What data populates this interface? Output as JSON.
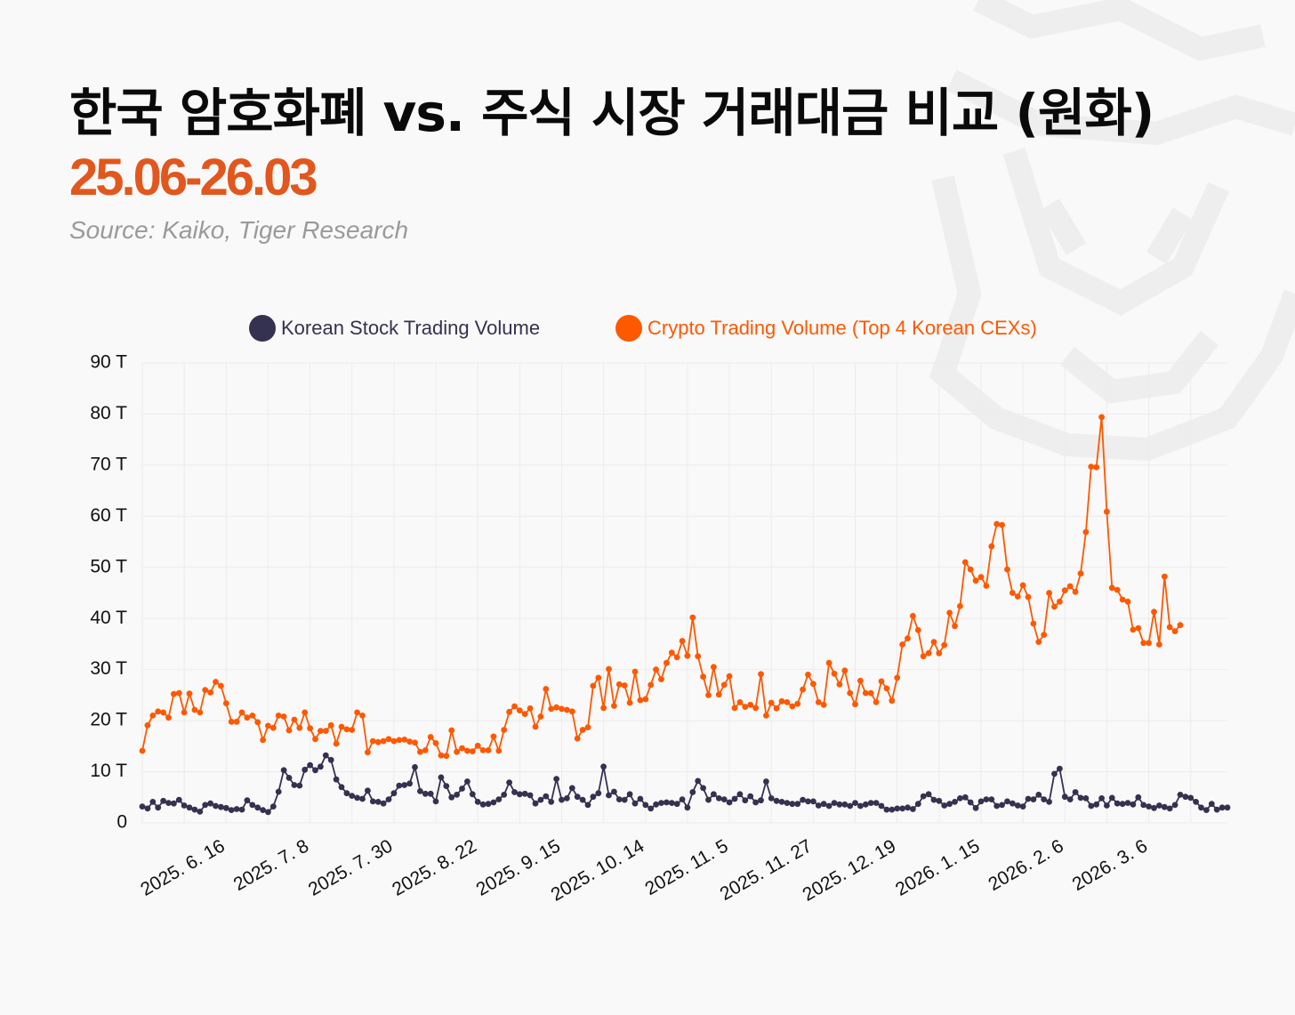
{
  "header": {
    "title": "한국 암호화폐 vs. 주식 시장 거래대금 비교 (원화)",
    "subtitle": "25.06-26.03",
    "source": "Source: Kaiko, Tiger Research"
  },
  "colors": {
    "stock": "#353150",
    "crypto": "#fe5800",
    "grid": "#ececec",
    "background": "#f9f9f9",
    "accent": "#e2571d"
  },
  "chart_data": {
    "type": "line",
    "title": "한국 암호화폐 vs. 주식 시장 거래대금 비교 (원화)",
    "subtitle": "25.06-26.03",
    "xlabel": "",
    "ylabel": "",
    "ylim": [
      0,
      90
    ],
    "y_ticks": [
      0,
      10,
      20,
      30,
      40,
      50,
      60,
      70,
      80,
      90
    ],
    "y_tick_labels": [
      "0",
      "10 T",
      "20 T",
      "30 T",
      "40 T",
      "50 T",
      "60 T",
      "70 T",
      "80 T",
      "90 T"
    ],
    "x_tick_labels": [
      "2025. 6. 16",
      "2025. 7. 8",
      "2025. 7. 30",
      "2025. 8. 22",
      "2025. 9. 15",
      "2025. 10. 14",
      "2025. 11. 5",
      "2025. 11. 27",
      "2025. 12. 19",
      "2026. 1. 15",
      "2026. 2. 6",
      "2026. 3. 6"
    ],
    "x_tick_index": [
      16,
      32,
      48,
      64,
      80,
      96,
      112,
      128,
      144,
      160,
      176,
      192
    ],
    "legend_position": "top-center",
    "grid": true,
    "series": [
      {
        "name": "Korean Stock Trading Volume",
        "values": [
          3.2,
          2.8,
          4.1,
          3.0,
          4.3,
          3.9,
          3.8,
          4.5,
          3.4,
          3.0,
          2.6,
          2.2,
          3.5,
          3.8,
          3.3,
          3.1,
          2.9,
          2.5,
          2.7,
          2.6,
          4.4,
          3.5,
          3.0,
          2.5,
          2.1,
          3.2,
          6.1,
          10.3,
          8.8,
          7.4,
          7.3,
          10.4,
          11.3,
          10.3,
          11.0,
          13.2,
          12.3,
          8.5,
          7.0,
          5.8,
          5.3,
          4.9,
          4.7,
          6.3,
          4.2,
          4.1,
          3.8,
          4.6,
          5.8,
          7.3,
          7.4,
          7.7,
          10.9,
          6.2,
          5.7,
          5.7,
          4.2,
          8.9,
          7.2,
          5.0,
          5.5,
          6.7,
          8.1,
          5.6,
          4.1,
          3.6,
          3.7,
          4.0,
          4.6,
          5.5,
          7.9,
          6.0,
          5.6,
          5.7,
          5.4,
          3.8,
          4.5,
          5.2,
          4.1,
          8.6,
          4.5,
          4.8,
          6.8,
          5.1,
          4.5,
          3.5,
          5.1,
          5.8,
          11.0,
          5.4,
          6.1,
          4.6,
          4.5,
          5.6,
          3.8,
          4.7,
          3.5,
          2.8,
          3.6,
          3.9,
          4.0,
          3.9,
          3.7,
          4.6,
          3.0,
          6.0,
          8.2,
          6.8,
          4.5,
          5.6,
          4.8,
          4.6,
          4.0,
          4.7,
          5.6,
          4.4,
          5.2,
          4.0,
          4.4,
          8.1,
          4.8,
          4.3,
          4.1,
          3.9,
          3.7,
          3.7,
          4.5,
          4.2,
          4.2,
          3.4,
          3.7,
          3.3,
          3.9,
          3.6,
          3.6,
          3.3,
          3.9,
          3.3,
          3.6,
          3.9,
          3.9,
          3.3,
          2.6,
          2.6,
          2.8,
          2.8,
          3.0,
          2.7,
          3.7,
          5.2,
          5.6,
          4.5,
          4.3,
          3.4,
          3.7,
          4.1,
          4.8,
          5.0,
          4.0,
          2.9,
          4.2,
          4.6,
          4.6,
          3.3,
          3.5,
          4.2,
          3.8,
          3.4,
          3.2,
          4.7,
          4.6,
          5.5,
          4.6,
          4.1,
          9.6,
          10.6,
          5.1,
          4.6,
          6.0,
          4.9,
          4.8,
          3.3,
          3.6,
          4.8,
          3.4,
          4.9,
          3.8,
          3.7,
          3.9,
          3.6,
          5.0,
          3.5,
          3.2,
          2.9,
          3.4,
          3.1,
          2.8,
          3.5,
          5.5,
          5.1,
          4.9,
          4.1,
          3.0,
          2.5,
          3.7,
          2.6,
          3.0,
          3.0
        ]
      },
      {
        "name": "Crypto Trading Volume (Top 4 Korean CEXs)",
        "values": [
          14.1,
          19.1,
          21.0,
          21.8,
          21.6,
          20.6,
          25.2,
          25.4,
          21.6,
          25.3,
          22.1,
          21.6,
          26.0,
          25.5,
          27.6,
          26.8,
          23.4,
          19.8,
          19.8,
          21.6,
          20.6,
          21.0,
          19.7,
          16.2,
          19.0,
          18.6,
          21.0,
          20.8,
          18.1,
          20.2,
          18.6,
          21.6,
          18.5,
          16.4,
          18.0,
          18.0,
          19.1,
          15.5,
          18.8,
          18.3,
          18.2,
          21.6,
          21.0,
          13.8,
          16.0,
          15.8,
          16.0,
          16.4,
          16.0,
          16.2,
          16.3,
          15.9,
          15.7,
          13.9,
          14.2,
          16.8,
          15.6,
          13.2,
          13.1,
          18.1,
          13.9,
          14.6,
          14.1,
          14.0,
          15.1,
          14.2,
          14.2,
          16.9,
          14.1,
          18.2,
          21.7,
          22.8,
          22.0,
          21.3,
          22.4,
          18.8,
          20.8,
          26.2,
          22.3,
          22.6,
          22.3,
          22.1,
          21.8,
          16.5,
          18.2,
          18.7,
          26.8,
          28.4,
          22.5,
          30.1,
          22.9,
          27.1,
          26.9,
          23.5,
          29.6,
          24.0,
          24.2,
          27.0,
          30.0,
          28.1,
          31.3,
          33.3,
          32.4,
          35.6,
          32.7,
          40.2,
          32.6,
          28.6,
          25.0,
          30.5,
          25.1,
          27.0,
          28.7,
          22.5,
          23.6,
          22.7,
          23.1,
          22.5,
          29.1,
          21.0,
          23.5,
          22.4,
          23.8,
          23.6,
          22.8,
          23.3,
          26.1,
          29.0,
          27.2,
          23.6,
          23.1,
          31.3,
          29.2,
          27.1,
          29.8,
          25.4,
          23.2,
          27.8,
          25.4,
          25.4,
          23.6,
          27.7,
          26.3,
          23.9,
          28.4,
          34.9,
          36.1,
          40.5,
          37.7,
          32.6,
          33.2,
          35.4,
          33.2,
          34.8,
          41.1,
          38.5,
          42.4,
          51.0,
          49.6,
          47.4,
          48.1,
          46.4,
          54.1,
          58.5,
          58.3,
          49.6,
          45.0,
          44.3,
          46.5,
          44.2,
          39.0,
          35.4,
          36.8,
          45.0,
          42.3,
          43.3,
          45.5,
          46.3,
          45.2,
          48.8,
          56.9,
          69.7,
          69.6,
          79.4,
          60.9,
          46.0,
          45.6,
          43.7,
          43.3,
          37.8,
          38.1,
          35.2,
          35.2,
          41.3,
          34.9,
          48.2,
          38.3,
          37.5,
          38.7
        ]
      }
    ]
  }
}
